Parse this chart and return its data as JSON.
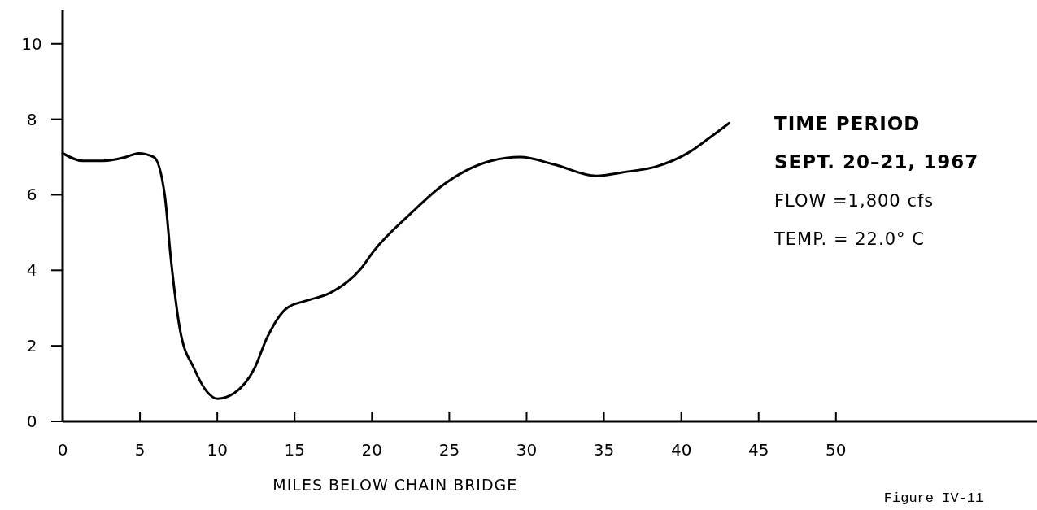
{
  "chart_data": {
    "type": "line",
    "xlabel": "MILES BELOW CHAIN BRIDGE",
    "annotations": [
      "TIME PERIOD",
      "SEPT. 20–21, 1967",
      "FLOW =1,800 cfs",
      "TEMP. = 22.0° C",
      "Figure IV-11"
    ],
    "series": [
      {
        "color": "#000000",
        "x": [
          0,
          1.3,
          2.6,
          4.1,
          4.9,
          5.9,
          6.6,
          7.0,
          7.6,
          8.5,
          9.3,
          10.0,
          11.1,
          12.4,
          13.2,
          14.5,
          15.8,
          17.3,
          19.3,
          20.1,
          22.5,
          24.4,
          27.7,
          29.6,
          31.8,
          34.5,
          36.3,
          38.4,
          40.4,
          41.8,
          43.1
        ],
        "values": [
          7.1,
          6.9,
          6.9,
          7.0,
          7.1,
          7.0,
          6.0,
          4.3,
          2.4,
          1.4,
          0.8,
          0.6,
          0.75,
          1.4,
          2.2,
          3.0,
          3.2,
          3.4,
          4.05,
          4.5,
          5.5,
          6.2,
          6.9,
          7.0,
          6.8,
          6.5,
          6.6,
          6.75,
          7.1,
          7.5,
          7.9
        ]
      }
    ],
    "xlim": [
      0,
      63
    ],
    "ylim": [
      0,
      10.9
    ],
    "xticks": [
      0,
      5,
      10,
      15,
      20,
      25,
      30,
      35,
      40,
      45,
      50
    ],
    "yticks": [
      0,
      2,
      4,
      6,
      8,
      10
    ],
    "grid": false,
    "marker": "none",
    "line_style": "solid"
  }
}
